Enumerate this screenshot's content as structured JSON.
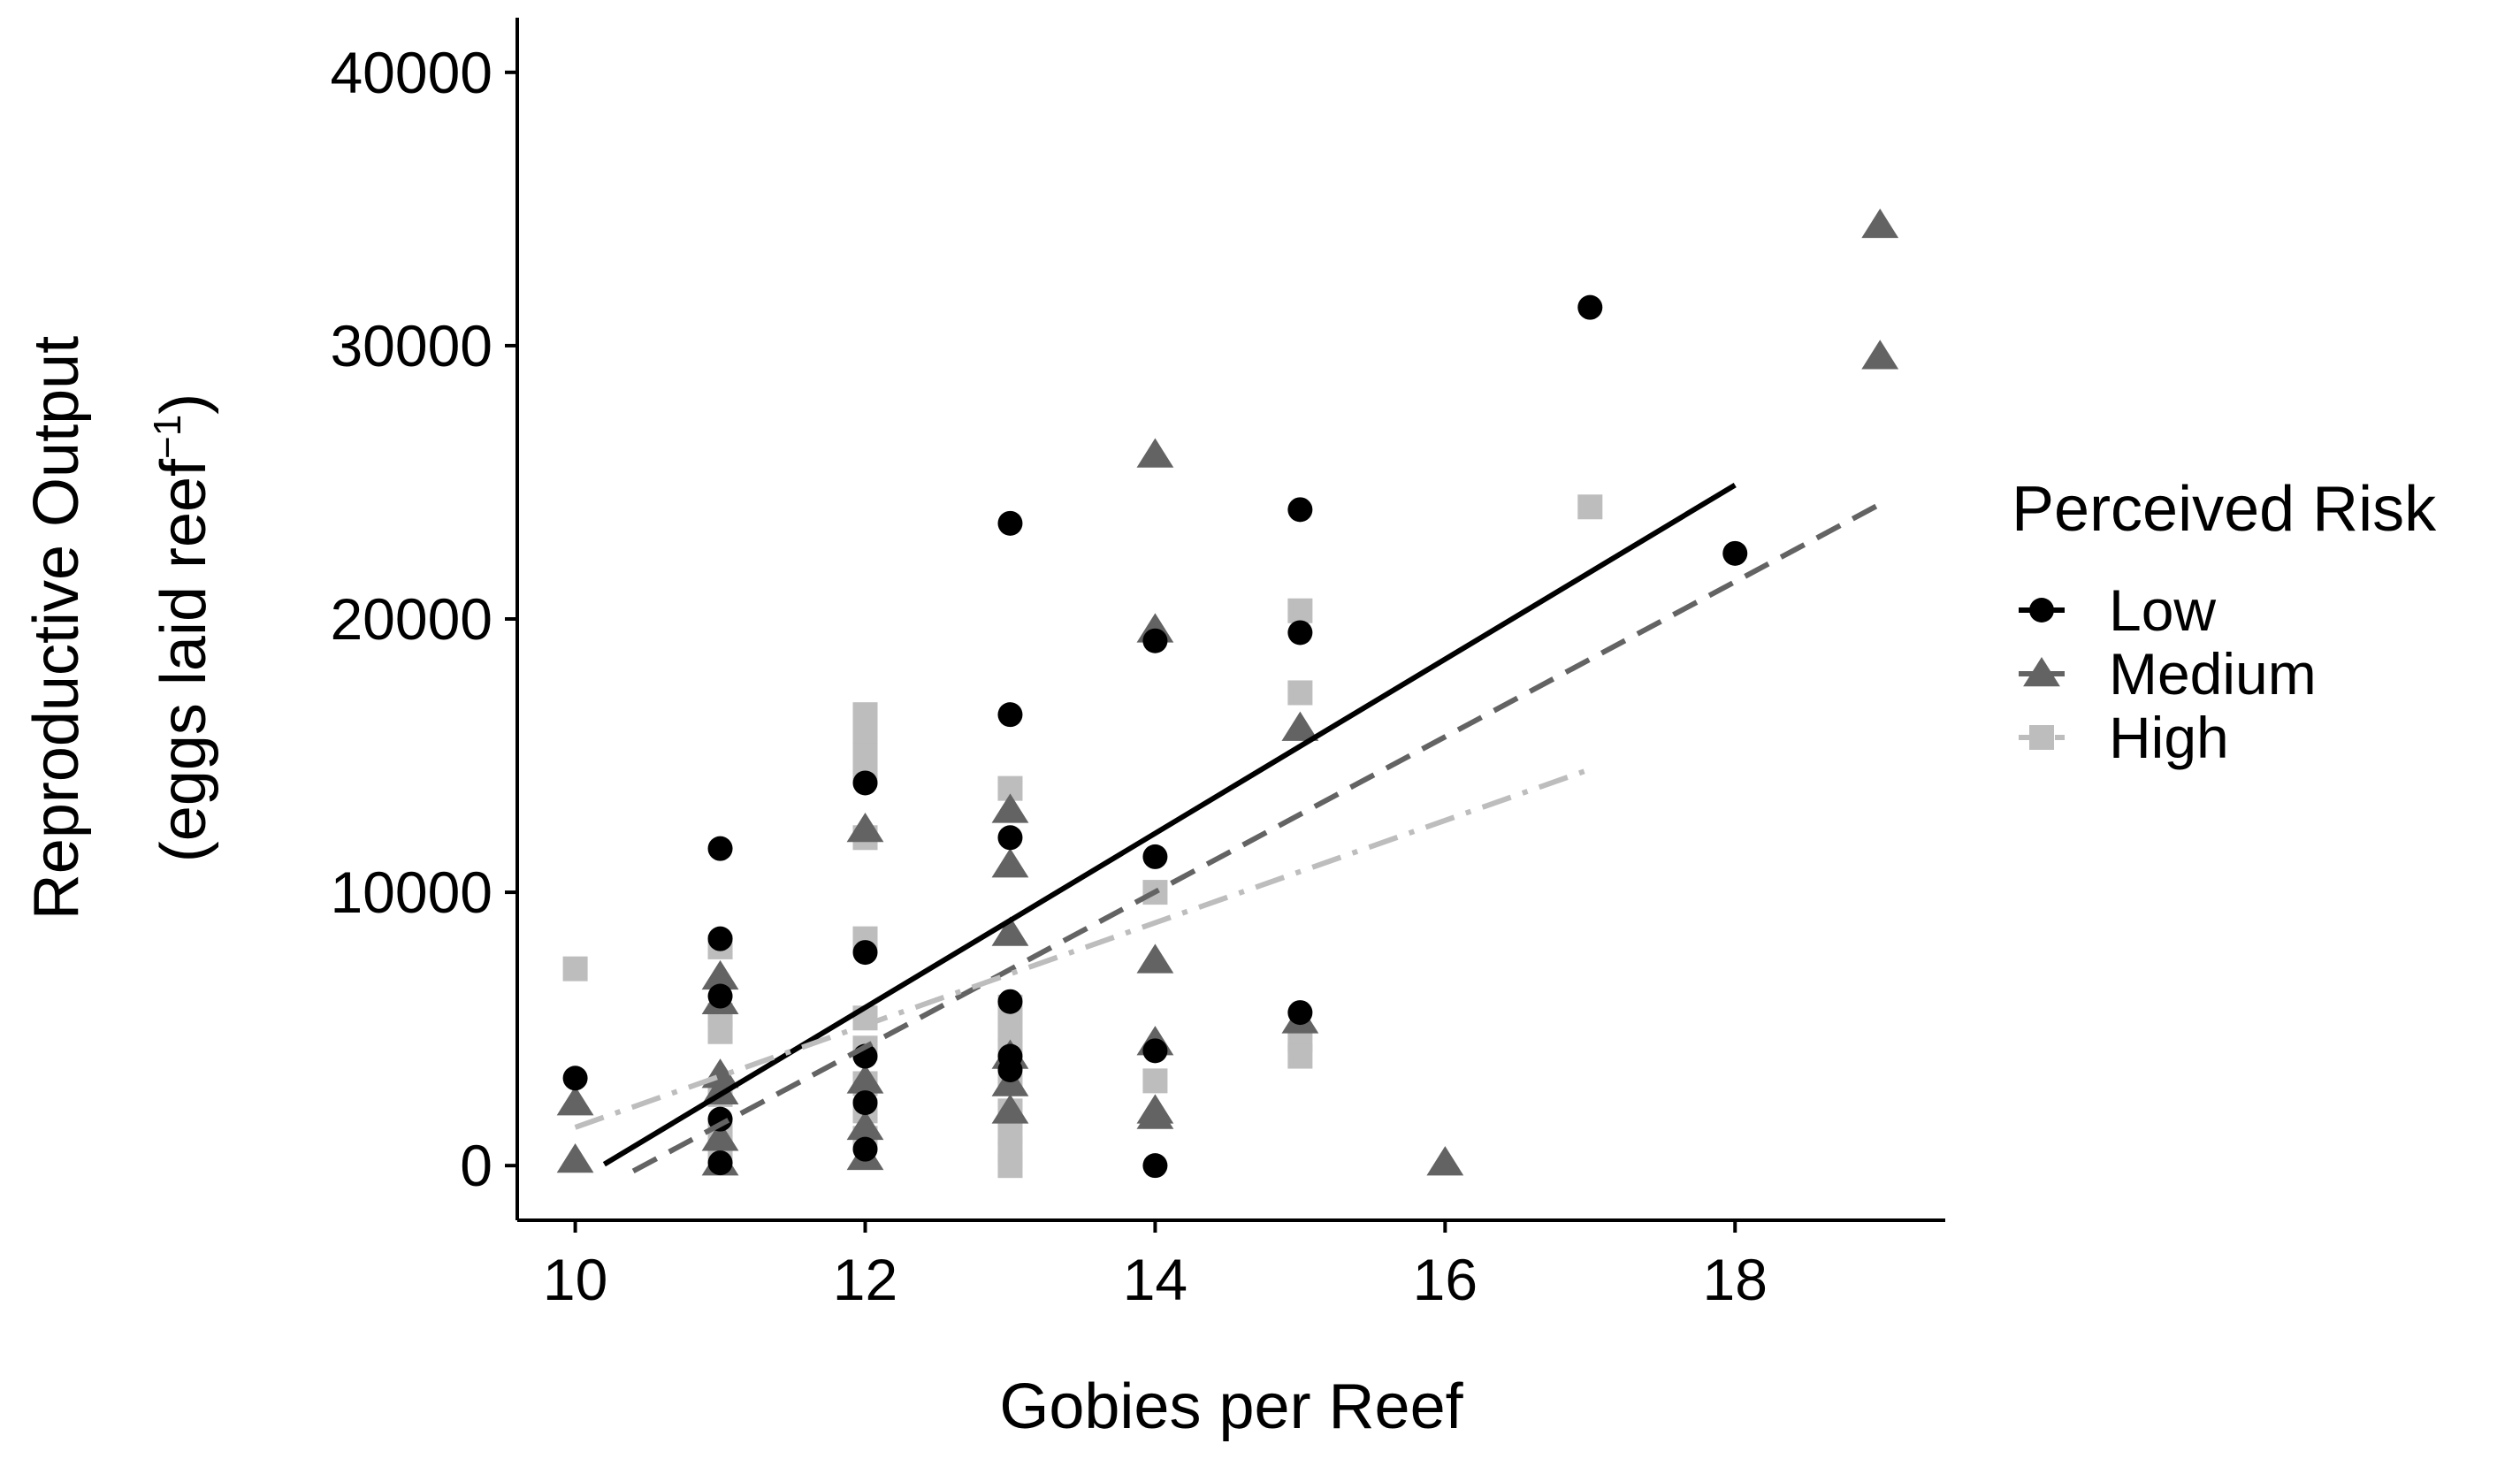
{
  "chart_data": {
    "type": "scatter",
    "xlabel": "Gobies per Reef",
    "ylabel_line1": "Reproductive Output",
    "ylabel_line2_prefix": "(eggs laid reef",
    "ylabel_line2_sup": "−1",
    "ylabel_line2_suffix": ")",
    "xlim": [
      9.6,
      19.45
    ],
    "ylim": [
      -2000,
      42000
    ],
    "x_ticks": [
      10,
      12,
      14,
      16,
      18
    ],
    "x_tick_labels": [
      "10",
      "12",
      "14",
      "16",
      "18"
    ],
    "y_ticks": [
      0,
      10000,
      20000,
      30000,
      40000
    ],
    "y_tick_labels": [
      "0",
      "10000",
      "20000",
      "30000",
      "40000"
    ],
    "grid": false,
    "legend": {
      "title": "Perceived Risk",
      "placement": "right"
    },
    "series": [
      {
        "name": "Low",
        "marker": "circle",
        "color": "#000000",
        "line_style": "solid",
        "fit": {
          "x": [
            10.2,
            18
          ],
          "y": [
            50,
            24900
          ]
        },
        "points": [
          {
            "x": 10,
            "y": 3200
          },
          {
            "x": 11,
            "y": 11600
          },
          {
            "x": 11,
            "y": 8300
          },
          {
            "x": 11,
            "y": 6200
          },
          {
            "x": 11,
            "y": 1700
          },
          {
            "x": 11,
            "y": 100
          },
          {
            "x": 12,
            "y": 14000
          },
          {
            "x": 12,
            "y": 7800
          },
          {
            "x": 12,
            "y": 4000
          },
          {
            "x": 12,
            "y": 2300
          },
          {
            "x": 12,
            "y": 600
          },
          {
            "x": 13,
            "y": 23500
          },
          {
            "x": 13,
            "y": 16500
          },
          {
            "x": 13,
            "y": 12000
          },
          {
            "x": 13,
            "y": 6000
          },
          {
            "x": 13,
            "y": 4000
          },
          {
            "x": 13,
            "y": 3500
          },
          {
            "x": 14,
            "y": 19200
          },
          {
            "x": 14,
            "y": 11300
          },
          {
            "x": 14,
            "y": 4200
          },
          {
            "x": 14,
            "y": 0
          },
          {
            "x": 15,
            "y": 24000
          },
          {
            "x": 15,
            "y": 19500
          },
          {
            "x": 15,
            "y": 5600
          },
          {
            "x": 17,
            "y": 31400
          },
          {
            "x": 18,
            "y": 22400
          }
        ]
      },
      {
        "name": "Medium",
        "marker": "triangle",
        "color": "#636363",
        "line_style": "dashed",
        "fit": {
          "x": [
            10.4,
            19
          ],
          "y": [
            -200,
            24200
          ]
        },
        "points": [
          {
            "x": 10,
            "y": 2300
          },
          {
            "x": 10,
            "y": 200
          },
          {
            "x": 11,
            "y": 6900
          },
          {
            "x": 11,
            "y": 6000
          },
          {
            "x": 11,
            "y": 3300
          },
          {
            "x": 11,
            "y": 2700
          },
          {
            "x": 11,
            "y": 1000
          },
          {
            "x": 11,
            "y": 100
          },
          {
            "x": 12,
            "y": 12300
          },
          {
            "x": 12,
            "y": 3100
          },
          {
            "x": 12,
            "y": 1400
          },
          {
            "x": 12,
            "y": 300
          },
          {
            "x": 13,
            "y": 13000
          },
          {
            "x": 13,
            "y": 11000
          },
          {
            "x": 13,
            "y": 8500
          },
          {
            "x": 13,
            "y": 4000
          },
          {
            "x": 13,
            "y": 3000
          },
          {
            "x": 13,
            "y": 2000
          },
          {
            "x": 14,
            "y": 26000
          },
          {
            "x": 14,
            "y": 19600
          },
          {
            "x": 14,
            "y": 7500
          },
          {
            "x": 14,
            "y": 4500
          },
          {
            "x": 14,
            "y": 2000
          },
          {
            "x": 14,
            "y": 1800
          },
          {
            "x": 15,
            "y": 16000
          },
          {
            "x": 15,
            "y": 5300
          },
          {
            "x": 16,
            "y": 100
          },
          {
            "x": 19,
            "y": 34400
          },
          {
            "x": 19,
            "y": 29600
          }
        ]
      },
      {
        "name": "High",
        "marker": "square",
        "color": "#bdbdbd",
        "line_style": "dotdash",
        "fit": {
          "x": [
            10,
            17
          ],
          "y": [
            1400,
            14500
          ]
        },
        "points": [
          {
            "x": 10,
            "y": 7200
          },
          {
            "x": 11,
            "y": 8000
          },
          {
            "x": 11,
            "y": 5500
          },
          {
            "x": 11,
            "y": 4900
          },
          {
            "x": 11,
            "y": 2600
          },
          {
            "x": 11,
            "y": 1300
          },
          {
            "x": 11,
            "y": 500
          },
          {
            "x": 12,
            "y": 16500
          },
          {
            "x": 12,
            "y": 16000
          },
          {
            "x": 12,
            "y": 15500
          },
          {
            "x": 12,
            "y": 15000
          },
          {
            "x": 12,
            "y": 14500
          },
          {
            "x": 12,
            "y": 12000
          },
          {
            "x": 12,
            "y": 8300
          },
          {
            "x": 12,
            "y": 5400
          },
          {
            "x": 12,
            "y": 4300
          },
          {
            "x": 12,
            "y": 3000
          },
          {
            "x": 12,
            "y": 2000
          },
          {
            "x": 12,
            "y": 1000
          },
          {
            "x": 13,
            "y": 13800
          },
          {
            "x": 13,
            "y": 5800
          },
          {
            "x": 13,
            "y": 5000
          },
          {
            "x": 13,
            "y": 4200
          },
          {
            "x": 13,
            "y": 3000
          },
          {
            "x": 13,
            "y": 2000
          },
          {
            "x": 13,
            "y": 1200
          },
          {
            "x": 13,
            "y": 500
          },
          {
            "x": 13,
            "y": 0
          },
          {
            "x": 14,
            "y": 10000
          },
          {
            "x": 14,
            "y": 3100
          },
          {
            "x": 15,
            "y": 20300
          },
          {
            "x": 15,
            "y": 17300
          },
          {
            "x": 15,
            "y": 4600
          },
          {
            "x": 15,
            "y": 4000
          },
          {
            "x": 17,
            "y": 24100
          }
        ]
      }
    ]
  }
}
